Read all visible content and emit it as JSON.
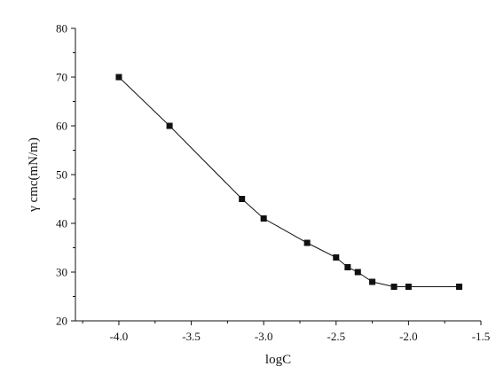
{
  "chart_data": {
    "type": "line",
    "title": "",
    "xlabel": "logC",
    "ylabel": "γ cmc(mN/m)",
    "xlim": [
      -4.3,
      -1.5
    ],
    "ylim": [
      20,
      80
    ],
    "x_ticks": [
      -4.0,
      -3.5,
      -3.0,
      -2.5,
      -2.0,
      -1.5
    ],
    "x_tick_labels": [
      "-4.0",
      "-3.5",
      "-3.0",
      "-2.5",
      "-2.0",
      "-1.5"
    ],
    "y_ticks": [
      20,
      30,
      40,
      50,
      60,
      70,
      80
    ],
    "y_tick_labels": [
      "20",
      "30",
      "40",
      "50",
      "60",
      "70",
      "80"
    ],
    "grid": false,
    "series": [
      {
        "marker": "square",
        "color": "#111111",
        "x": [
          -4.0,
          -3.65,
          -3.15,
          -3.0,
          -2.7,
          -2.5,
          -2.42,
          -2.35,
          -2.25,
          -2.1,
          -2.0,
          -1.65
        ],
        "y": [
          70,
          60,
          45,
          41,
          36,
          33,
          31,
          30,
          28,
          27,
          27,
          27
        ]
      }
    ]
  }
}
